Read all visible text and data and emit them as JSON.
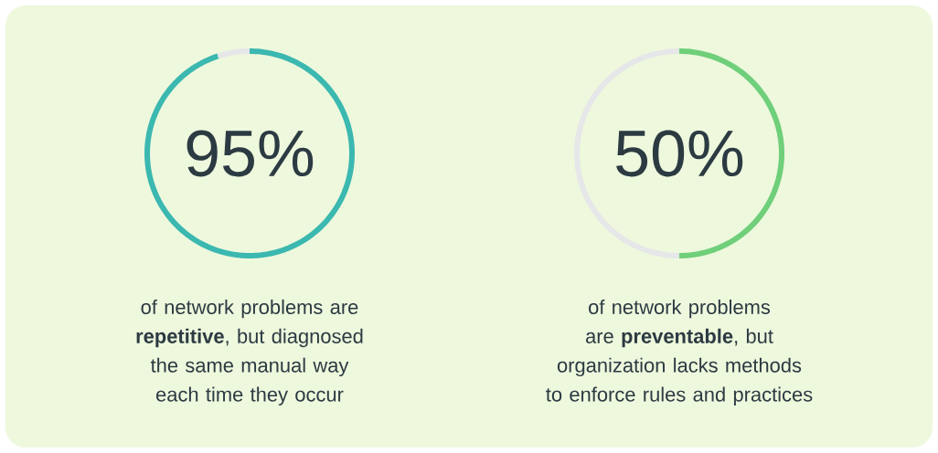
{
  "chart_data": [
    {
      "type": "donut",
      "categories": [
        null,
        null
      ],
      "values": [
        95,
        5
      ],
      "colors": [
        "#3bb8b0",
        "#e5e7e9"
      ],
      "value_labels": [
        "95%",
        null
      ],
      "annotations": [
        "of network problems are **repetitive**, but diagnosed the same manual way each time they occur"
      ]
    },
    {
      "type": "donut",
      "categories": [
        null,
        null
      ],
      "values": [
        50,
        50
      ],
      "colors": [
        "#6fcf7a",
        "#e5e7e9"
      ],
      "value_labels": [
        "50%",
        null
      ],
      "annotations": [
        "of network problems are **preventable**, but organization lacks methods to enforce rules and practices"
      ]
    }
  ]
}
